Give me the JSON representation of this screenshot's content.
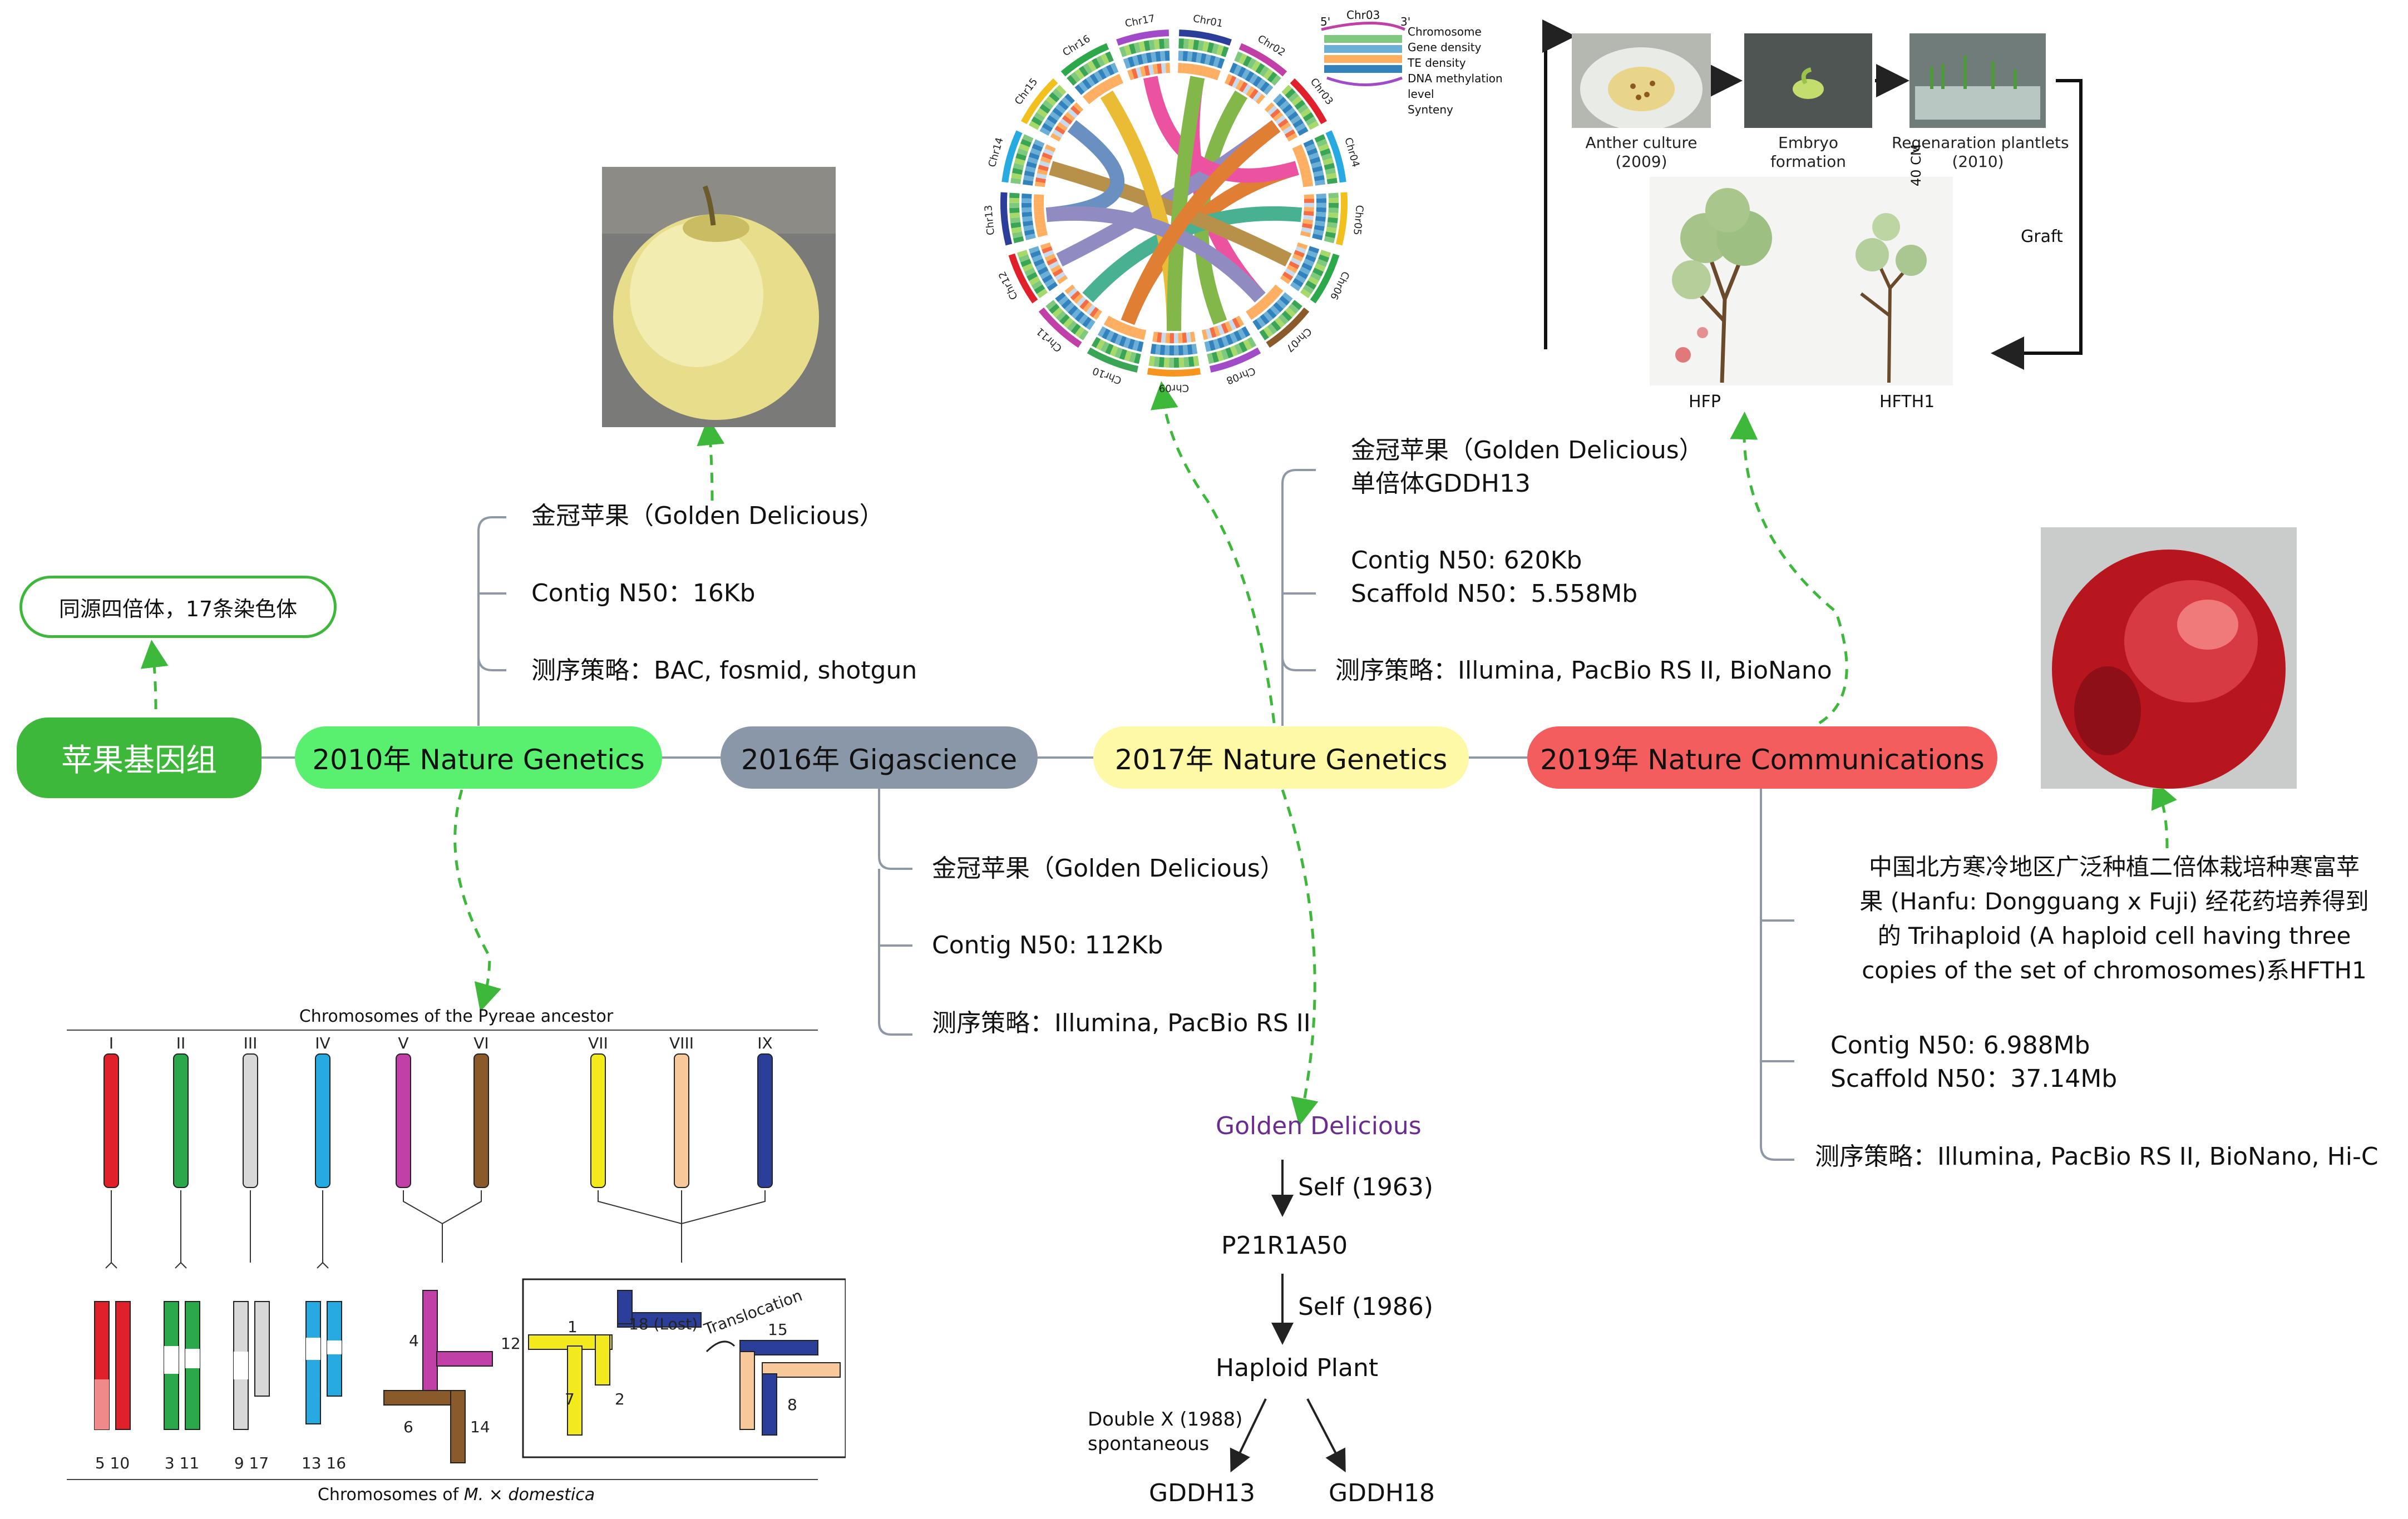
{
  "root": {
    "label": "苹果基因组",
    "color": "#3db83a"
  },
  "root_note": "同源四倍体，17条染色体",
  "milestones": [
    {
      "label": "2010年 Nature Genetics",
      "color": "#59f06f"
    },
    {
      "label": "2016年 Gigascience",
      "color": "#8a97a8"
    },
    {
      "label": "2017年 Nature Genetics",
      "color": "#fdf9a6"
    },
    {
      "label": "2019年 Nature Communications",
      "color": "#f45d5d"
    }
  ],
  "details_2010": [
    "金冠苹果（Golden Delicious）",
    "Contig N50：16Kb",
    "测序策略：BAC, fosmid, shotgun"
  ],
  "details_2016": [
    "金冠苹果（Golden Delicious）",
    "Contig N50: 112Kb",
    "测序策略：Illumina, PacBio RS II"
  ],
  "details_2017": {
    "variety": [
      "金冠苹果（Golden Delicious）",
      "单倍体GDDH13"
    ],
    "n50": [
      "Contig N50: 620Kb",
      "Scaffold N50：5.558Mb"
    ],
    "strategy": "测序策略：Illumina, PacBio RS II, BioNano"
  },
  "details_2019": {
    "desc": [
      "中国北方寒冷地区广泛种植二倍体栽培种寒富苹",
      "果 (Hanfu: Dongguang x Fuji) 经花药培养得到",
      "的 Trihaploid (A haploid cell having three",
      "copies of the set of chromosomes)系HFTH1"
    ],
    "n50": [
      "Contig N50: 6.988Mb",
      "Scaffold N50：37.14Mb"
    ],
    "strategy": "测序策略：Illumina, PacBio RS II, BioNano, Hi-C"
  },
  "pedigree": {
    "top": "Golden Delicious",
    "self1": "Self (1963)",
    "mid": "P21R1A50",
    "self2": "Self (1986)",
    "haploid": "Haploid Plant",
    "double": [
      "Double X (1988)",
      "spontaneous"
    ],
    "leaves": [
      "GDDH13",
      "GDDH18"
    ]
  },
  "chrom_figure": {
    "title_top": "Chromosomes of the Pyreae ancestor",
    "title_bottom_prefix": "Chromosomes of ",
    "title_bottom_species": "M. × domestica",
    "roman": [
      "I",
      "II",
      "III",
      "IV",
      "V",
      "VI",
      "VII",
      "VIII",
      "IX"
    ],
    "roman_colors": [
      "#e0202a",
      "#2aa84a",
      "#d8d8d8",
      "#27a9e1",
      "#c040a8",
      "#8b5a2b",
      "#f2ea1c",
      "#f7c89a",
      "#2b3f9a"
    ],
    "pairs": [
      "5 10",
      "3 11",
      "9 17",
      "13 16"
    ],
    "cross_labels": [
      "4",
      "12",
      "6",
      "14"
    ],
    "box_labels": [
      "1",
      "18 (Lost)",
      "7",
      "2",
      "15",
      "8"
    ],
    "translocation": "Translocation"
  },
  "circos": {
    "chrs": [
      "Chr01",
      "Chr02",
      "Chr03",
      "Chr04",
      "Chr05",
      "Chr06",
      "Chr07",
      "Chr08",
      "Chr09",
      "Chr10",
      "Chr11",
      "Chr12",
      "Chr13",
      "Chr14",
      "Chr15",
      "Chr16",
      "Chr17"
    ],
    "legend_chr": "Chr03",
    "legend_5p": "5'",
    "legend_3p": "3'",
    "legend": [
      "Chromosome",
      "Gene density",
      "TE density",
      "DNA methylation level",
      "Synteny"
    ]
  },
  "culture": {
    "steps": [
      [
        "Anther culture",
        "(2009)"
      ],
      [
        "Embryo",
        "formation"
      ],
      [
        "Regenaration plantlets",
        "(2010)"
      ]
    ],
    "graft": "Graft",
    "scale": "40 CM",
    "plants": [
      "HFP",
      "HFTH1"
    ]
  },
  "icons": {
    "images": "photo-icon"
  }
}
